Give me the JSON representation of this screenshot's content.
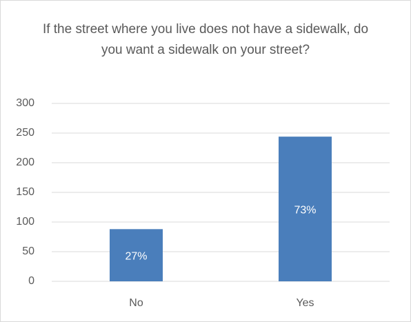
{
  "chart_data": {
    "type": "bar",
    "title": "If the street where you live does not have a sidewalk, do you want a sidewalk on your street?",
    "categories": [
      "No",
      "Yes"
    ],
    "values": [
      88,
      244
    ],
    "bar_labels": [
      "27%",
      "73%"
    ],
    "color": "#4a7ebb",
    "ylim": [
      0,
      300
    ],
    "yticks": [
      0,
      50,
      100,
      150,
      200,
      250,
      300
    ],
    "grid": true
  }
}
